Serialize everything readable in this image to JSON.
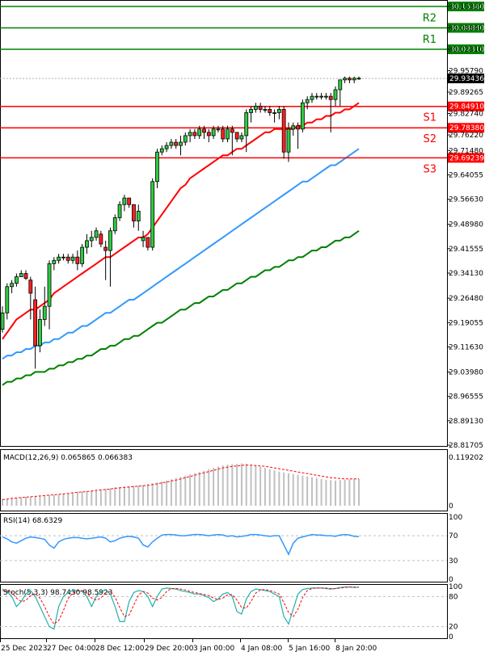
{
  "chart_data": [
    {
      "type": "candlestick",
      "panel": "price",
      "y_ticks": [
        "30.15360",
        "30.08840",
        "30.02310",
        "29.95790",
        "29.89265",
        "29.82740",
        "29.76220",
        "29.71480",
        "29.64055",
        "29.56630",
        "29.48980",
        "29.41555",
        "29.34130",
        "29.26480",
        "29.19055",
        "29.11630",
        "29.03980",
        "28.96555",
        "28.89130",
        "28.81705"
      ],
      "ylim": [
        28.81705,
        30.1536
      ],
      "x_ticks": [
        "25 Dec 2023",
        "27 Dec 04:00",
        "28 Dec 12:00",
        "29 Dec 20:00",
        "3 Jan 00:00",
        "4 Jan 08:00",
        "5 Jan 16:00",
        "8 Jan 20:00"
      ],
      "current_price": "29.93436",
      "levels": [
        {
          "name": "R3",
          "value": "30.15360",
          "color": "#008000"
        },
        {
          "name": "R2",
          "value": "30.08840",
          "color": "#008000"
        },
        {
          "name": "R1",
          "value": "30.02310",
          "color": "#008000"
        },
        {
          "name": "S1",
          "value": "29.84910",
          "color": "#ff0000"
        },
        {
          "name": "S2",
          "value": "29.78380",
          "color": "#ff0000"
        },
        {
          "name": "S3",
          "value": "29.69239",
          "color": "#ff0000"
        }
      ],
      "candles": [
        [
          29.17,
          29.24,
          29.16,
          29.22
        ],
        [
          29.22,
          29.31,
          29.2,
          29.3
        ],
        [
          29.3,
          29.32,
          29.28,
          29.31
        ],
        [
          29.31,
          29.34,
          29.3,
          29.33
        ],
        [
          29.33,
          29.35,
          29.33,
          29.34
        ],
        [
          29.34,
          29.35,
          29.32,
          29.325
        ],
        [
          29.32,
          29.33,
          29.2,
          29.28
        ],
        [
          29.26,
          29.3,
          29.05,
          29.12
        ],
        [
          29.12,
          29.23,
          29.1,
          29.2
        ],
        [
          29.2,
          29.3,
          29.18,
          29.24
        ],
        [
          29.24,
          29.38,
          29.17,
          29.37
        ],
        [
          29.37,
          29.39,
          29.35,
          29.38
        ],
        [
          29.38,
          29.4,
          29.37,
          29.39
        ],
        [
          29.39,
          29.4,
          29.38,
          29.39
        ],
        [
          29.39,
          29.4,
          29.37,
          29.38
        ],
        [
          29.38,
          29.4,
          29.37,
          29.39
        ],
        [
          29.39,
          29.41,
          29.35,
          29.37
        ],
        [
          29.37,
          29.43,
          29.36,
          29.42
        ],
        [
          29.42,
          29.46,
          29.4,
          29.44
        ],
        [
          29.44,
          29.47,
          29.42,
          29.45
        ],
        [
          29.45,
          29.48,
          29.44,
          29.47
        ],
        [
          29.46,
          29.47,
          29.42,
          29.43
        ],
        [
          29.42,
          29.44,
          29.32,
          29.41
        ],
        [
          29.41,
          29.48,
          29.3,
          29.47
        ],
        [
          29.47,
          29.52,
          29.46,
          29.51
        ],
        [
          29.51,
          29.56,
          29.5,
          29.55
        ],
        [
          29.55,
          29.58,
          29.53,
          29.57
        ],
        [
          29.57,
          29.57,
          29.54,
          29.55
        ],
        [
          29.55,
          29.55,
          29.48,
          29.5
        ],
        [
          29.5,
          29.55,
          29.47,
          29.53
        ],
        [
          29.44,
          29.47,
          29.42,
          29.45
        ],
        [
          29.45,
          29.45,
          29.41,
          29.42
        ],
        [
          29.42,
          29.63,
          29.41,
          29.62
        ],
        [
          29.62,
          29.72,
          29.6,
          29.71
        ],
        [
          29.71,
          29.73,
          29.7,
          29.72
        ],
        [
          29.72,
          29.74,
          29.71,
          29.73
        ],
        [
          29.73,
          29.75,
          29.72,
          29.74
        ],
        [
          29.74,
          29.75,
          29.72,
          29.73
        ],
        [
          29.73,
          29.76,
          29.7,
          29.74
        ],
        [
          29.74,
          29.77,
          29.73,
          29.76
        ],
        [
          29.76,
          29.78,
          29.74,
          29.77
        ],
        [
          29.77,
          29.78,
          29.75,
          29.76
        ],
        [
          29.76,
          29.79,
          29.75,
          29.78
        ],
        [
          29.78,
          29.79,
          29.75,
          29.77
        ],
        [
          29.77,
          29.78,
          29.74,
          29.76
        ],
        [
          29.76,
          29.79,
          29.75,
          29.78
        ],
        [
          29.78,
          29.79,
          29.77,
          29.78
        ],
        [
          29.78,
          29.79,
          29.74,
          29.75
        ],
        [
          29.75,
          29.79,
          29.74,
          29.78
        ],
        [
          29.78,
          29.79,
          29.7,
          29.77
        ],
        [
          29.77,
          29.77,
          29.74,
          29.75
        ],
        [
          29.75,
          29.77,
          29.74,
          29.76
        ],
        [
          29.76,
          29.84,
          29.71,
          29.83
        ],
        [
          29.83,
          29.85,
          29.8,
          29.84
        ],
        [
          29.84,
          29.86,
          29.83,
          29.85
        ],
        [
          29.85,
          29.86,
          29.83,
          29.84
        ],
        [
          29.84,
          29.85,
          29.83,
          29.84
        ],
        [
          29.84,
          29.85,
          29.82,
          29.83
        ],
        [
          29.83,
          29.84,
          29.8,
          29.83
        ],
        [
          29.83,
          29.85,
          29.81,
          29.84
        ],
        [
          29.84,
          29.85,
          29.69,
          29.71
        ],
        [
          29.71,
          29.8,
          29.68,
          29.78
        ],
        [
          29.78,
          29.8,
          29.76,
          29.79
        ],
        [
          29.79,
          29.8,
          29.72,
          29.78
        ],
        [
          29.78,
          29.87,
          29.77,
          29.86
        ],
        [
          29.86,
          29.88,
          29.84,
          29.87
        ],
        [
          29.87,
          29.89,
          29.86,
          29.88
        ],
        [
          29.88,
          29.89,
          29.87,
          29.88
        ],
        [
          29.88,
          29.89,
          29.87,
          29.88
        ],
        [
          29.88,
          29.89,
          29.87,
          29.88
        ],
        [
          29.88,
          29.89,
          29.77,
          29.87
        ],
        [
          29.87,
          29.91,
          29.85,
          29.9
        ],
        [
          29.9,
          29.93,
          29.85,
          29.93
        ],
        [
          29.93,
          29.94,
          29.92,
          29.935
        ],
        [
          29.935,
          29.94,
          29.92,
          29.93
        ],
        [
          29.93,
          29.94,
          29.92,
          29.935
        ],
        [
          29.935,
          29.94,
          29.93,
          29.935
        ]
      ],
      "ma_red": [
        29.14,
        29.16,
        29.18,
        29.2,
        29.21,
        29.22,
        29.23,
        29.23,
        29.24,
        29.25,
        29.26,
        29.28,
        29.29,
        29.3,
        29.31,
        29.32,
        29.33,
        29.34,
        29.35,
        29.36,
        29.37,
        29.38,
        29.39,
        29.39,
        29.4,
        29.41,
        29.42,
        29.43,
        29.44,
        29.45,
        29.45,
        29.46,
        29.48,
        29.5,
        29.52,
        29.54,
        29.56,
        29.58,
        29.6,
        29.61,
        29.63,
        29.64,
        29.65,
        29.66,
        29.67,
        29.68,
        29.69,
        29.7,
        29.7,
        29.71,
        29.72,
        29.72,
        29.73,
        29.74,
        29.75,
        29.76,
        29.77,
        29.77,
        29.78,
        29.78,
        29.78,
        29.78,
        29.78,
        29.79,
        29.79,
        29.8,
        29.8,
        29.81,
        29.81,
        29.82,
        29.82,
        29.83,
        29.83,
        29.84,
        29.84,
        29.85,
        29.86
      ],
      "ma_blue": [
        29.08,
        29.09,
        29.09,
        29.1,
        29.1,
        29.11,
        29.11,
        29.12,
        29.12,
        29.13,
        29.13,
        29.14,
        29.14,
        29.15,
        29.16,
        29.16,
        29.17,
        29.18,
        29.18,
        29.19,
        29.2,
        29.21,
        29.22,
        29.22,
        29.23,
        29.24,
        29.25,
        29.26,
        29.26,
        29.27,
        29.28,
        29.29,
        29.3,
        29.31,
        29.32,
        29.33,
        29.34,
        29.35,
        29.36,
        29.37,
        29.38,
        29.39,
        29.4,
        29.41,
        29.42,
        29.43,
        29.44,
        29.45,
        29.46,
        29.47,
        29.48,
        29.49,
        29.5,
        29.51,
        29.52,
        29.53,
        29.54,
        29.55,
        29.56,
        29.57,
        29.58,
        29.59,
        29.6,
        29.61,
        29.62,
        29.62,
        29.63,
        29.64,
        29.65,
        29.66,
        29.67,
        29.67,
        29.68,
        29.69,
        29.7,
        29.71,
        29.72
      ],
      "ma_green": [
        29.0,
        29.01,
        29.01,
        29.02,
        29.02,
        29.03,
        29.03,
        29.04,
        29.04,
        29.04,
        29.05,
        29.05,
        29.06,
        29.06,
        29.07,
        29.07,
        29.08,
        29.08,
        29.09,
        29.09,
        29.1,
        29.11,
        29.11,
        29.12,
        29.12,
        29.13,
        29.14,
        29.14,
        29.15,
        29.15,
        29.16,
        29.17,
        29.18,
        29.19,
        29.19,
        29.2,
        29.21,
        29.22,
        29.23,
        29.23,
        29.24,
        29.25,
        29.25,
        29.26,
        29.27,
        29.27,
        29.28,
        29.29,
        29.29,
        29.3,
        29.31,
        29.31,
        29.32,
        29.33,
        29.33,
        29.34,
        29.35,
        29.35,
        29.36,
        29.36,
        29.37,
        29.38,
        29.38,
        29.39,
        29.39,
        29.4,
        29.41,
        29.41,
        29.42,
        29.42,
        29.43,
        29.44,
        29.44,
        29.45,
        29.45,
        29.46,
        29.47
      ]
    },
    {
      "type": "bar",
      "panel": "macd",
      "label": "MACD(12,26,9) 0.065865 0.066383",
      "y_ticks": [
        "0.119202",
        "0"
      ],
      "ylim": [
        0,
        0.119202
      ],
      "values": [
        0.016,
        0.017,
        0.019,
        0.02,
        0.021,
        0.022,
        0.022,
        0.023,
        0.024,
        0.025,
        0.026,
        0.027,
        0.028,
        0.03,
        0.031,
        0.033,
        0.034,
        0.035,
        0.036,
        0.038,
        0.039,
        0.04,
        0.042,
        0.043,
        0.045,
        0.046,
        0.047,
        0.048,
        0.049,
        0.05,
        0.051,
        0.053,
        0.055,
        0.057,
        0.06,
        0.062,
        0.065,
        0.068,
        0.071,
        0.074,
        0.077,
        0.08,
        0.083,
        0.086,
        0.09,
        0.093,
        0.096,
        0.099,
        0.101,
        0.102,
        0.103,
        0.104,
        0.103,
        0.101,
        0.099,
        0.096,
        0.093,
        0.09,
        0.087,
        0.084,
        0.082,
        0.08,
        0.078,
        0.076,
        0.074,
        0.072,
        0.07,
        0.068,
        0.066,
        0.064,
        0.063,
        0.062,
        0.063,
        0.064,
        0.065,
        0.066,
        0.066
      ],
      "signal": [
        0.015,
        0.016,
        0.018,
        0.019,
        0.02,
        0.021,
        0.022,
        0.023,
        0.024,
        0.025,
        0.026,
        0.027,
        0.028,
        0.029,
        0.03,
        0.032,
        0.033,
        0.034,
        0.035,
        0.036,
        0.038,
        0.039,
        0.04,
        0.041,
        0.043,
        0.044,
        0.045,
        0.046,
        0.047,
        0.048,
        0.049,
        0.05,
        0.052,
        0.054,
        0.056,
        0.058,
        0.061,
        0.063,
        0.066,
        0.069,
        0.072,
        0.075,
        0.078,
        0.081,
        0.084,
        0.087,
        0.09,
        0.093,
        0.095,
        0.097,
        0.098,
        0.099,
        0.1,
        0.1,
        0.099,
        0.098,
        0.097,
        0.095,
        0.093,
        0.091,
        0.089,
        0.087,
        0.085,
        0.083,
        0.081,
        0.079,
        0.077,
        0.075,
        0.073,
        0.071,
        0.069,
        0.068,
        0.067,
        0.066,
        0.066,
        0.066,
        0.066
      ]
    },
    {
      "type": "line",
      "panel": "rsi",
      "label": "RSI(14) 68.6329",
      "y_ticks": [
        "100",
        "70",
        "30",
        "0"
      ],
      "ylim": [
        0,
        100
      ],
      "values": [
        68,
        65,
        60,
        58,
        62,
        66,
        68,
        67,
        66,
        64,
        55,
        50,
        60,
        64,
        66,
        67,
        67,
        66,
        65,
        66,
        67,
        68,
        66,
        60,
        62,
        66,
        68,
        69,
        68,
        66,
        55,
        52,
        60,
        66,
        71,
        72,
        72,
        71,
        70,
        70,
        71,
        72,
        72,
        71,
        70,
        71,
        72,
        71,
        69,
        70,
        68,
        69,
        70,
        72,
        72,
        71,
        70,
        69,
        70,
        70,
        55,
        40,
        58,
        66,
        68,
        70,
        72,
        71,
        71,
        70,
        70,
        69,
        71,
        72,
        71,
        69,
        68.6
      ]
    },
    {
      "type": "line",
      "panel": "stoch",
      "label": "Stoch(5,3,3) 98.7430 98.5923",
      "y_ticks": [
        "100",
        "80",
        "20",
        "0"
      ],
      "ylim": [
        0,
        100
      ],
      "main": [
        95,
        90,
        80,
        60,
        70,
        85,
        92,
        80,
        60,
        40,
        20,
        15,
        60,
        80,
        88,
        92,
        92,
        90,
        80,
        60,
        80,
        90,
        93,
        85,
        60,
        30,
        30,
        70,
        88,
        92,
        90,
        80,
        60,
        80,
        95,
        97,
        96,
        95,
        92,
        90,
        88,
        85,
        85,
        82,
        78,
        70,
        75,
        85,
        88,
        80,
        50,
        45,
        75,
        90,
        95,
        94,
        92,
        90,
        85,
        80,
        40,
        25,
        55,
        85,
        94,
        96,
        97,
        97,
        97,
        96,
        95,
        96,
        98,
        99,
        99,
        98,
        98.7
      ],
      "signal": [
        92,
        91,
        88,
        77,
        70,
        72,
        82,
        86,
        77,
        60,
        40,
        25,
        32,
        52,
        76,
        87,
        91,
        92,
        87,
        77,
        73,
        77,
        88,
        90,
        79,
        58,
        40,
        43,
        63,
        83,
        90,
        87,
        77,
        73,
        78,
        90,
        96,
        96,
        95,
        93,
        90,
        88,
        86,
        84,
        82,
        77,
        74,
        77,
        83,
        84,
        73,
        58,
        57,
        70,
        87,
        93,
        94,
        92,
        89,
        85,
        68,
        48,
        40,
        55,
        78,
        92,
        96,
        97,
        97,
        97,
        96,
        96,
        97,
        98,
        99,
        99,
        98.6
      ]
    }
  ]
}
